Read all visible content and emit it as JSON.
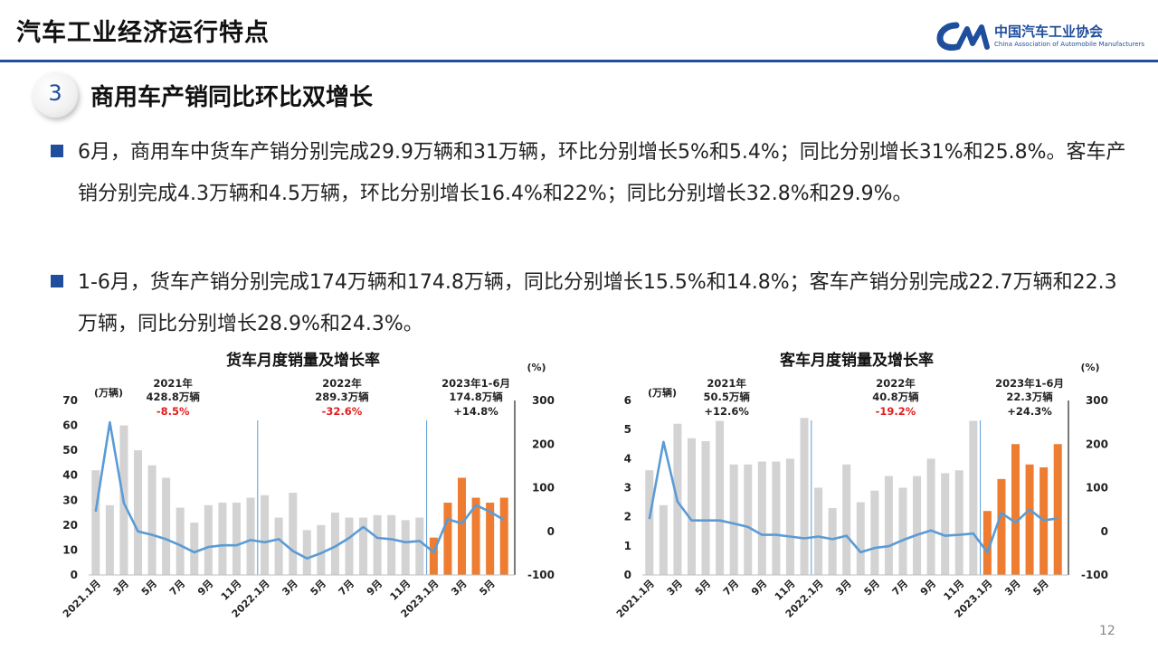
{
  "header": {
    "title": "汽车工业经济运行特点",
    "logo_name": "中国汽车工业协会",
    "logo_en": "China Association of Automobile Manufacturers"
  },
  "section": {
    "number": "3",
    "title": "商用车产销同比环比双增长"
  },
  "bullets": [
    "6月，商用车中货车产销分别完成29.9万辆和31万辆，环比分别增长5%和5.4%；同比分别增长31%和25.8%。客车产销分别完成4.3万辆和4.5万辆，环比分别增长16.4%和22%；同比分别增长32.8%和29.9%。",
    "1-6月，货车产销分别完成174万辆和174.8万辆，同比分别增长15.5%和14.8%；客车产销分别完成22.7万辆和22.3万辆，同比分别增长28.9%和24.3%。"
  ],
  "page_number": "12",
  "chart_data": [
    {
      "type": "bar",
      "title": "货车月度销量及增长率",
      "y_unit": "(万辆)",
      "y2_unit": "(%)",
      "ylim": [
        0,
        70
      ],
      "yticks": [
        0,
        10,
        20,
        30,
        40,
        50,
        60,
        70
      ],
      "y2lim": [
        -100,
        300
      ],
      "y2ticks": [
        -100,
        0,
        100,
        200,
        300
      ],
      "x_tick_labels": [
        "2021.1月",
        "3月",
        "5月",
        "7月",
        "9月",
        "11月",
        "2022.1月",
        "3月",
        "5月",
        "7月",
        "9月",
        "11月",
        "2023.1月",
        "3月",
        "5月"
      ],
      "annotations": [
        {
          "year": "2021年",
          "total": "428.8万辆",
          "growth": "-8.5%",
          "growth_color": "#e02020"
        },
        {
          "year": "2022年",
          "total": "289.3万辆",
          "growth": "-32.6%",
          "growth_color": "#e02020"
        },
        {
          "year": "2023年1-6月",
          "total": "174.8万辆",
          "growth": "+14.8%",
          "growth_color": "#222222"
        }
      ],
      "bar_colors": {
        "history": "#d3d3d3",
        "current": "#ee7d31"
      },
      "line_color": "#5b9bd5",
      "series": [
        {
          "type": "bar",
          "values": [
            42,
            28,
            60,
            50,
            44,
            39,
            27,
            21,
            28,
            29,
            29,
            31,
            32,
            23,
            33,
            18,
            20,
            25,
            23,
            23,
            24,
            24,
            22,
            23,
            15,
            29,
            39,
            31,
            29,
            31
          ]
        },
        {
          "type": "line",
          "values": [
            45,
            250,
            65,
            0,
            -8,
            -18,
            -32,
            -48,
            -36,
            -32,
            -32,
            -20,
            -25,
            -18,
            -45,
            -62,
            -50,
            -35,
            -15,
            10,
            -15,
            -18,
            -25,
            -22,
            -48,
            28,
            18,
            60,
            45,
            26
          ]
        }
      ]
    },
    {
      "type": "bar",
      "title": "客车月度销量及增长率",
      "y_unit": "(万辆)",
      "y2_unit": "(%)",
      "ylim": [
        0,
        6
      ],
      "yticks": [
        0,
        1,
        2,
        3,
        4,
        5,
        6
      ],
      "y2lim": [
        -100,
        300
      ],
      "y2ticks": [
        -100,
        0,
        100,
        200,
        300
      ],
      "x_tick_labels": [
        "2021.1月",
        "3月",
        "5月",
        "7月",
        "9月",
        "11月",
        "2022.1月",
        "3月",
        "5月",
        "7月",
        "9月",
        "11月",
        "2023.1月",
        "3月",
        "5月"
      ],
      "annotations": [
        {
          "year": "2021年",
          "total": "50.5万辆",
          "growth": "+12.6%",
          "growth_color": "#222222"
        },
        {
          "year": "2022年",
          "total": "40.8万辆",
          "growth": "-19.2%",
          "growth_color": "#e02020"
        },
        {
          "year": "2023年1-6月",
          "total": "22.3万辆",
          "growth": "+24.3%",
          "growth_color": "#222222"
        }
      ],
      "bar_colors": {
        "history": "#d3d3d3",
        "current": "#ee7d31"
      },
      "line_color": "#5b9bd5",
      "series": [
        {
          "type": "bar",
          "values": [
            3.6,
            2.4,
            5.2,
            4.7,
            4.6,
            5.3,
            3.8,
            3.8,
            3.9,
            3.9,
            4.0,
            5.4,
            3.0,
            2.3,
            3.8,
            2.5,
            2.9,
            3.4,
            3.0,
            3.4,
            4.0,
            3.5,
            3.6,
            5.3,
            2.2,
            3.3,
            4.5,
            3.8,
            3.7,
            4.5
          ]
        },
        {
          "type": "line",
          "values": [
            28,
            205,
            68,
            25,
            25,
            25,
            18,
            10,
            -8,
            -8,
            -12,
            -16,
            -12,
            -18,
            -10,
            -48,
            -38,
            -34,
            -20,
            -8,
            2,
            -10,
            -8,
            -5,
            -48,
            42,
            20,
            50,
            25,
            30
          ]
        }
      ]
    }
  ]
}
